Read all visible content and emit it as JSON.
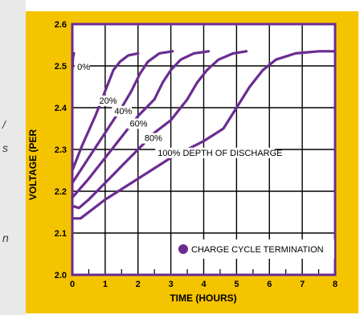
{
  "side_fragments": [
    {
      "text": "/"
    },
    {
      "text": "s"
    },
    {
      "text": "n"
    }
  ],
  "chart_data": {
    "type": "line",
    "title": "",
    "xlabel": "TIME (HOURS)",
    "ylabel": "VOLTAGE (PER",
    "xlim": [
      0,
      8
    ],
    "ylim": [
      2.0,
      2.6
    ],
    "x_ticks": [
      "0",
      "1",
      "2",
      "3",
      "4",
      "5",
      "6",
      "7",
      "8"
    ],
    "y_ticks": [
      "2.0",
      "2.1",
      "2.2",
      "2.3",
      "2.4",
      "2.5",
      "2.6"
    ],
    "grid": true,
    "colors": {
      "frame": "#f5c400",
      "line": "#6b2c91",
      "grid": "#000000",
      "plot_bg": "#ffffff"
    },
    "series": [
      {
        "name": "0%",
        "points": [
          [
            0.0,
            2.49
          ],
          [
            0.02,
            2.52
          ],
          [
            0.05,
            2.53
          ]
        ]
      },
      {
        "name": "20%",
        "points": [
          [
            0.0,
            2.25
          ],
          [
            0.3,
            2.31
          ],
          [
            0.7,
            2.38
          ],
          [
            1.0,
            2.44
          ],
          [
            1.1,
            2.46
          ],
          [
            1.25,
            2.49
          ],
          [
            1.45,
            2.51
          ],
          [
            1.7,
            2.525
          ],
          [
            2.0,
            2.53
          ]
        ]
      },
      {
        "name": "40%",
        "points": [
          [
            0.0,
            2.22
          ],
          [
            0.5,
            2.28
          ],
          [
            1.0,
            2.34
          ],
          [
            1.5,
            2.4
          ],
          [
            1.8,
            2.44
          ],
          [
            2.05,
            2.48
          ],
          [
            2.3,
            2.51
          ],
          [
            2.65,
            2.53
          ],
          [
            3.05,
            2.535
          ]
        ]
      },
      {
        "name": "60%",
        "points": [
          [
            0.0,
            2.185
          ],
          [
            0.5,
            2.23
          ],
          [
            1.0,
            2.28
          ],
          [
            1.5,
            2.33
          ],
          [
            2.0,
            2.38
          ],
          [
            2.5,
            2.42
          ],
          [
            2.75,
            2.46
          ],
          [
            3.0,
            2.49
          ],
          [
            3.3,
            2.515
          ],
          [
            3.7,
            2.53
          ],
          [
            4.15,
            2.535
          ]
        ]
      },
      {
        "name": "80%",
        "points": [
          [
            0.0,
            2.165
          ],
          [
            0.2,
            2.16
          ],
          [
            0.5,
            2.18
          ],
          [
            1.0,
            2.22
          ],
          [
            1.5,
            2.26
          ],
          [
            2.0,
            2.3
          ],
          [
            2.5,
            2.34
          ],
          [
            3.0,
            2.37
          ],
          [
            3.5,
            2.42
          ],
          [
            3.8,
            2.46
          ],
          [
            4.1,
            2.49
          ],
          [
            4.45,
            2.515
          ],
          [
            4.9,
            2.53
          ],
          [
            5.3,
            2.535
          ]
        ]
      },
      {
        "name": "100% DEPTH OF DISCHARGE",
        "points": [
          [
            0.0,
            2.135
          ],
          [
            0.25,
            2.135
          ],
          [
            1.0,
            2.18
          ],
          [
            2.0,
            2.23
          ],
          [
            3.0,
            2.28
          ],
          [
            4.0,
            2.32
          ],
          [
            4.6,
            2.35
          ],
          [
            5.0,
            2.4
          ],
          [
            5.4,
            2.45
          ],
          [
            5.8,
            2.49
          ],
          [
            6.2,
            2.515
          ],
          [
            6.8,
            2.53
          ],
          [
            7.5,
            2.535
          ],
          [
            8.0,
            2.535
          ]
        ]
      }
    ],
    "series_labels": [
      {
        "text": "0%",
        "x": 0.15,
        "y": 2.49
      },
      {
        "text": "20%",
        "x": 0.82,
        "y": 2.41
      },
      {
        "text": "40%",
        "x": 1.28,
        "y": 2.385
      },
      {
        "text": "60%",
        "x": 1.75,
        "y": 2.355
      },
      {
        "text": "80%",
        "x": 2.2,
        "y": 2.32
      },
      {
        "text": "100% DEPTH OF DISCHARGE",
        "x": 2.6,
        "y": 2.285
      }
    ],
    "legend": {
      "text": "CHARGE CYCLE TERMINATION",
      "placement": "bottom-right"
    }
  }
}
